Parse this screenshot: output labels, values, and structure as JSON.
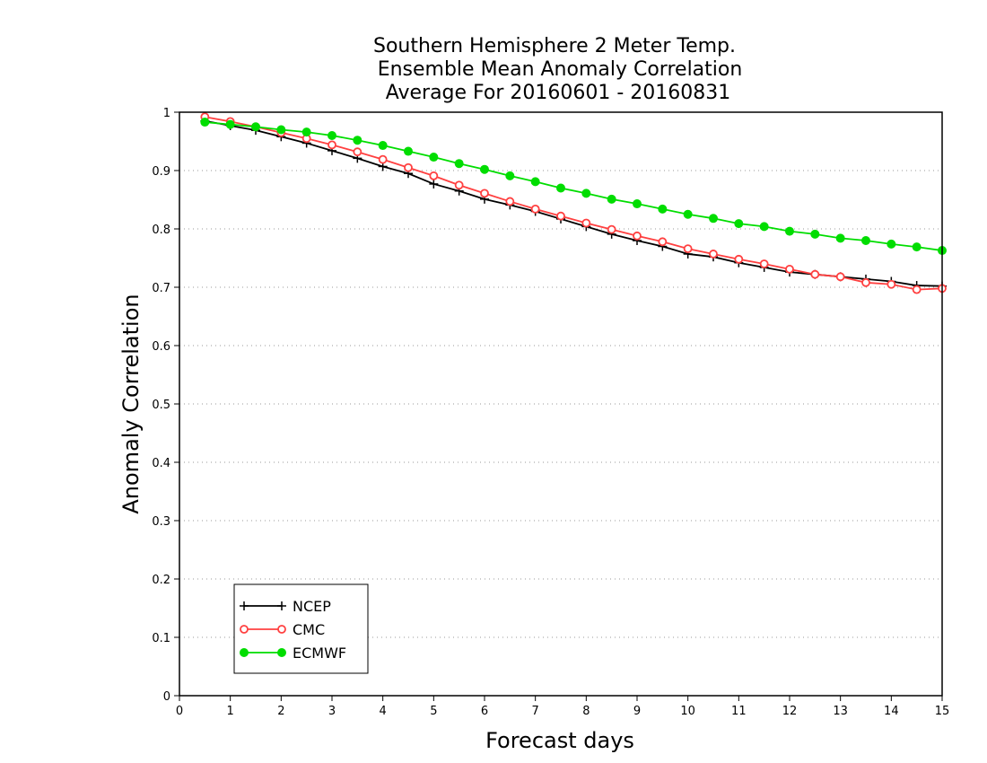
{
  "chart_data": {
    "type": "line",
    "title_lines": [
      "Southern Hemisphere 2 Meter Temp.",
      "Ensemble Mean Anomaly Correlation",
      "Average For 20160601 - 20160831"
    ],
    "xlabel": "Forecast days",
    "ylabel": "Anomaly Correlation",
    "xlim": [
      0,
      15
    ],
    "ylim": [
      0,
      1
    ],
    "x_ticks": [
      "0",
      "1",
      "2",
      "3",
      "4",
      "5",
      "6",
      "7",
      "8",
      "9",
      "10",
      "11",
      "12",
      "13",
      "14",
      "15"
    ],
    "y_ticks": [
      "0",
      "0.1",
      "0.2",
      "0.3",
      "0.4",
      "0.5",
      "0.6",
      "0.7",
      "0.8",
      "0.9",
      "1"
    ],
    "grid": "horizontal dotted",
    "legend_position": "bottom-left",
    "x": [
      0.5,
      1,
      1.5,
      2,
      2.5,
      3,
      3.5,
      4,
      4.5,
      5,
      5.5,
      6,
      6.5,
      7,
      7.5,
      8,
      8.5,
      9,
      9.5,
      10,
      10.5,
      11,
      11.5,
      12,
      12.5,
      13,
      13.5,
      14,
      14.5,
      15
    ],
    "series": [
      {
        "name": "NCEP",
        "color": "#000000",
        "marker": "plus",
        "values": [
          0.985,
          0.977,
          0.969,
          0.958,
          0.947,
          0.934,
          0.921,
          0.907,
          0.895,
          0.877,
          0.865,
          0.851,
          0.841,
          0.83,
          0.817,
          0.804,
          0.791,
          0.78,
          0.77,
          0.757,
          0.752,
          0.742,
          0.734,
          0.726,
          0.722,
          0.718,
          0.714,
          0.71,
          0.703,
          0.702
        ]
      },
      {
        "name": "CMC",
        "color": "#ff4040",
        "marker": "open-circle",
        "values": [
          0.992,
          0.984,
          0.975,
          0.965,
          0.955,
          0.944,
          0.932,
          0.919,
          0.905,
          0.891,
          0.875,
          0.861,
          0.847,
          0.834,
          0.822,
          0.81,
          0.799,
          0.788,
          0.778,
          0.766,
          0.757,
          0.748,
          0.74,
          0.731,
          0.722,
          0.718,
          0.708,
          0.705,
          0.696,
          0.698
        ]
      },
      {
        "name": "ECMWF",
        "color": "#00dd00",
        "marker": "filled-circle",
        "values": [
          0.983,
          0.979,
          0.975,
          0.97,
          0.966,
          0.96,
          0.952,
          0.943,
          0.933,
          0.923,
          0.912,
          0.902,
          0.891,
          0.881,
          0.87,
          0.861,
          0.851,
          0.843,
          0.834,
          0.825,
          0.818,
          0.809,
          0.804,
          0.796,
          0.791,
          0.784,
          0.78,
          0.774,
          0.769,
          0.763
        ]
      }
    ]
  }
}
